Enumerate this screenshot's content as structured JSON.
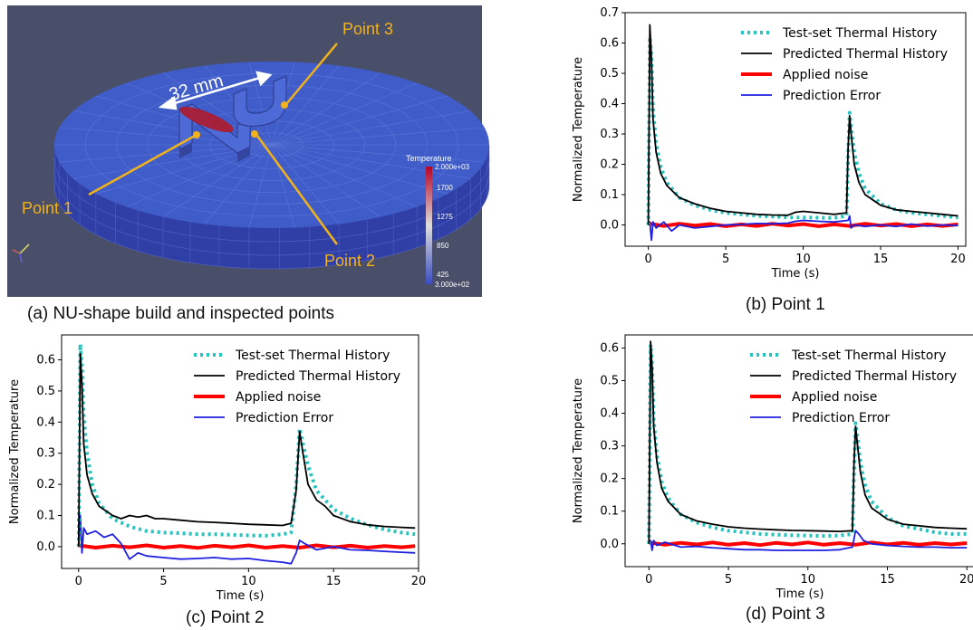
{
  "figure": {
    "panel_a": {
      "caption": "(a) NU-shape build and inspected points",
      "dimension_label": "32 mm",
      "point_labels": [
        "Point 1",
        "Point 2",
        "Point 3"
      ],
      "colorbar": {
        "title": "Temperature",
        "ticks": [
          "2.000e+03",
          "1700",
          "1275",
          "850",
          "425",
          "3.000e+02"
        ]
      },
      "colors": {
        "background": "#4a4f69",
        "part": "#3f5cc8",
        "hot": "#b01a2a",
        "callout": "#f2b21b"
      }
    },
    "captions": {
      "b": "(b) Point 1",
      "c": "(c) Point 2",
      "d": "(d) Point 3"
    }
  },
  "chart_data": [
    {
      "panel": "b",
      "type": "line",
      "xlabel": "Time (s)",
      "ylabel": "Normalized Temperature",
      "xlim": [
        -1.5,
        20.5
      ],
      "ylim": [
        -0.07,
        0.7
      ],
      "xticks": [
        0,
        5,
        10,
        15,
        20
      ],
      "yticks": [
        0.0,
        0.1,
        0.2,
        0.3,
        0.4,
        0.5,
        0.6,
        0.7
      ],
      "legend": "top-right",
      "series": [
        {
          "name": "Test-set Thermal History",
          "color": "#26c2bd",
          "style": "dotted",
          "x": [
            0,
            0.1,
            0.2,
            0.3,
            0.5,
            0.8,
            1.2,
            2,
            3,
            4,
            5,
            6,
            7,
            8,
            9,
            10,
            11,
            12,
            12.8,
            12.9,
            13.0,
            13.1,
            13.3,
            13.6,
            14,
            15,
            16,
            17,
            18,
            19,
            20
          ],
          "y": [
            0,
            0.62,
            0.55,
            0.38,
            0.27,
            0.19,
            0.14,
            0.09,
            0.065,
            0.05,
            0.04,
            0.035,
            0.03,
            0.028,
            0.025,
            0.025,
            0.024,
            0.023,
            0.03,
            0.22,
            0.37,
            0.32,
            0.24,
            0.17,
            0.12,
            0.07,
            0.05,
            0.04,
            0.035,
            0.03,
            0.025
          ]
        },
        {
          "name": "Predicted Thermal History",
          "color": "#000000",
          "style": "solid",
          "x": [
            0,
            0.1,
            0.2,
            0.3,
            0.5,
            0.8,
            1.2,
            2,
            3,
            4,
            5,
            6,
            7,
            8,
            9,
            9.5,
            10,
            11,
            12,
            12.8,
            12.9,
            13.0,
            13.1,
            13.3,
            13.6,
            14,
            15,
            16,
            17,
            18,
            19,
            20
          ],
          "y": [
            0,
            0.66,
            0.55,
            0.35,
            0.24,
            0.17,
            0.13,
            0.09,
            0.07,
            0.055,
            0.045,
            0.04,
            0.035,
            0.033,
            0.032,
            0.042,
            0.045,
            0.04,
            0.035,
            0.04,
            0.25,
            0.36,
            0.3,
            0.2,
            0.14,
            0.1,
            0.065,
            0.05,
            0.045,
            0.04,
            0.035,
            0.03
          ]
        },
        {
          "name": "Applied noise",
          "color": "#ff0000",
          "style": "thick",
          "x": [
            0,
            1,
            2,
            3,
            4,
            5,
            6,
            7,
            8,
            9,
            10,
            11,
            12,
            13,
            14,
            15,
            16,
            17,
            18,
            19,
            20
          ],
          "y": [
            0.005,
            -0.003,
            0.004,
            -0.002,
            0.003,
            -0.004,
            0.002,
            -0.003,
            0.004,
            -0.002,
            0.003,
            -0.004,
            0.002,
            -0.003,
            0.004,
            -0.002,
            0.003,
            -0.004,
            0.002,
            -0.003,
            0.002
          ]
        },
        {
          "name": "Prediction Error",
          "color": "#1f1fe0",
          "style": "solid",
          "x": [
            0,
            0.1,
            0.2,
            0.3,
            0.5,
            1,
            1.5,
            2,
            3,
            4,
            5,
            6,
            7,
            8,
            9,
            9.5,
            10,
            11,
            12,
            12.9,
            13.0,
            13.1,
            13.3,
            14,
            15,
            16,
            17,
            18,
            19,
            20
          ],
          "y": [
            0,
            0.01,
            -0.05,
            0.01,
            -0.01,
            0.01,
            -0.02,
            0.0,
            -0.01,
            -0.005,
            0.0,
            0.002,
            0.005,
            0.004,
            0.006,
            0.012,
            0.015,
            0.012,
            0.01,
            0.015,
            0.03,
            -0.01,
            0.0,
            -0.005,
            0.0,
            -0.005,
            0.003,
            -0.004,
            0.0,
            -0.002
          ]
        }
      ]
    },
    {
      "panel": "c",
      "type": "line",
      "xlabel": "Time (s)",
      "ylabel": "Normalized Temperature",
      "xlim": [
        -1.0,
        20.0
      ],
      "ylim": [
        -0.07,
        0.68
      ],
      "xticks": [
        0,
        5,
        10,
        15,
        20
      ],
      "yticks": [
        0.0,
        0.1,
        0.2,
        0.3,
        0.4,
        0.5,
        0.6
      ],
      "legend": "top-right",
      "series": [
        {
          "name": "Test-set Thermal History",
          "color": "#26c2bd",
          "style": "dotted",
          "x": [
            0,
            0.1,
            0.2,
            0.3,
            0.5,
            0.8,
            1.2,
            2,
            3,
            4,
            5,
            6,
            7,
            8,
            9,
            10,
            11,
            12,
            12.5,
            12.8,
            13.0,
            13.2,
            13.5,
            14,
            14.5,
            15,
            16,
            17,
            18,
            19,
            19.8
          ],
          "y": [
            0,
            0.65,
            0.58,
            0.42,
            0.3,
            0.2,
            0.14,
            0.09,
            0.065,
            0.05,
            0.045,
            0.043,
            0.04,
            0.04,
            0.038,
            0.036,
            0.035,
            0.04,
            0.045,
            0.2,
            0.38,
            0.33,
            0.26,
            0.18,
            0.15,
            0.12,
            0.09,
            0.07,
            0.055,
            0.045,
            0.04
          ]
        },
        {
          "name": "Predicted Thermal History",
          "color": "#000000",
          "style": "solid",
          "x": [
            0,
            0.1,
            0.2,
            0.3,
            0.5,
            0.8,
            1.2,
            2,
            2.5,
            3,
            3.5,
            4,
            4.5,
            5,
            6,
            7,
            8,
            9,
            10,
            11,
            12,
            12.5,
            12.8,
            13.0,
            13.2,
            13.5,
            14,
            14.5,
            15,
            16,
            17,
            18,
            19,
            19.8
          ],
          "y": [
            0,
            0.62,
            0.52,
            0.33,
            0.23,
            0.17,
            0.13,
            0.1,
            0.09,
            0.1,
            0.095,
            0.1,
            0.09,
            0.09,
            0.085,
            0.08,
            0.078,
            0.075,
            0.072,
            0.07,
            0.068,
            0.075,
            0.18,
            0.37,
            0.3,
            0.2,
            0.15,
            0.13,
            0.1,
            0.08,
            0.07,
            0.065,
            0.062,
            0.06
          ]
        },
        {
          "name": "Applied noise",
          "color": "#ff0000",
          "style": "thick",
          "x": [
            0,
            1,
            2,
            3,
            4,
            5,
            6,
            7,
            8,
            9,
            10,
            11,
            12,
            13,
            14,
            15,
            16,
            17,
            18,
            19,
            19.8
          ],
          "y": [
            0.004,
            -0.003,
            0.003,
            -0.002,
            0.004,
            -0.003,
            0.002,
            -0.004,
            0.003,
            -0.002,
            0.004,
            -0.003,
            0.002,
            -0.003,
            0.004,
            -0.002,
            0.003,
            -0.003,
            0.002,
            -0.002,
            0.002
          ]
        },
        {
          "name": "Prediction Error",
          "color": "#1f1fe0",
          "style": "solid",
          "x": [
            0,
            0.1,
            0.2,
            0.3,
            0.5,
            1,
            1.5,
            2,
            2.5,
            3,
            3.5,
            4,
            5,
            6,
            7,
            8,
            9,
            10,
            11,
            12,
            12.5,
            12.8,
            13.0,
            13.3,
            14,
            15,
            16,
            17,
            18,
            19,
            19.8
          ],
          "y": [
            0,
            0.1,
            -0.02,
            0.06,
            0.04,
            0.05,
            0.03,
            0.04,
            0.01,
            -0.04,
            -0.02,
            -0.03,
            -0.035,
            -0.04,
            -0.038,
            -0.035,
            -0.04,
            -0.038,
            -0.045,
            -0.05,
            -0.055,
            -0.02,
            0.02,
            0.01,
            -0.01,
            0.0,
            -0.01,
            -0.012,
            -0.015,
            -0.018,
            -0.02
          ]
        }
      ]
    },
    {
      "panel": "d",
      "type": "line",
      "xlabel": "Time (s)",
      "ylabel": "Normalized Temperature",
      "xlim": [
        -1.5,
        20.5
      ],
      "ylim": [
        -0.07,
        0.64
      ],
      "xticks": [
        0,
        5,
        10,
        15,
        20
      ],
      "yticks": [
        0.0,
        0.1,
        0.2,
        0.3,
        0.4,
        0.5,
        0.6
      ],
      "legend": "top-right",
      "series": [
        {
          "name": "Test-set Thermal History",
          "color": "#26c2bd",
          "style": "dotted",
          "x": [
            0,
            0.1,
            0.2,
            0.3,
            0.5,
            0.8,
            1.2,
            2,
            3,
            4,
            5,
            6,
            7,
            8,
            9,
            10,
            11,
            12,
            12.8,
            12.9,
            13.0,
            13.1,
            13.3,
            13.6,
            14,
            15,
            16,
            17,
            18,
            19,
            20
          ],
          "y": [
            0,
            0.61,
            0.55,
            0.38,
            0.27,
            0.19,
            0.14,
            0.09,
            0.065,
            0.05,
            0.04,
            0.035,
            0.03,
            0.028,
            0.026,
            0.025,
            0.024,
            0.025,
            0.03,
            0.22,
            0.37,
            0.33,
            0.25,
            0.18,
            0.13,
            0.08,
            0.055,
            0.045,
            0.035,
            0.03,
            0.03
          ]
        },
        {
          "name": "Predicted Thermal History",
          "color": "#000000",
          "style": "solid",
          "x": [
            0,
            0.1,
            0.2,
            0.3,
            0.5,
            0.8,
            1.2,
            2,
            3,
            4,
            5,
            6,
            7,
            8,
            9,
            10,
            11,
            12,
            12.8,
            12.9,
            13.0,
            13.1,
            13.3,
            13.6,
            14,
            15,
            16,
            17,
            18,
            19,
            20
          ],
          "y": [
            0,
            0.62,
            0.54,
            0.36,
            0.25,
            0.17,
            0.13,
            0.09,
            0.07,
            0.06,
            0.052,
            0.048,
            0.045,
            0.043,
            0.041,
            0.04,
            0.039,
            0.038,
            0.04,
            0.25,
            0.36,
            0.31,
            0.22,
            0.15,
            0.11,
            0.075,
            0.06,
            0.055,
            0.05,
            0.048,
            0.046
          ]
        },
        {
          "name": "Applied noise",
          "color": "#ff0000",
          "style": "thick",
          "x": [
            0,
            1,
            2,
            3,
            4,
            5,
            6,
            7,
            8,
            9,
            10,
            11,
            12,
            13,
            14,
            15,
            16,
            17,
            18,
            19,
            20
          ],
          "y": [
            0.004,
            -0.003,
            0.003,
            -0.002,
            0.004,
            -0.003,
            0.002,
            -0.004,
            0.003,
            -0.002,
            0.004,
            -0.003,
            0.002,
            -0.003,
            0.004,
            -0.002,
            0.003,
            -0.003,
            0.002,
            -0.002,
            0.002
          ]
        },
        {
          "name": "Prediction Error",
          "color": "#1f1fe0",
          "style": "solid",
          "x": [
            0,
            0.1,
            0.2,
            0.3,
            0.5,
            1,
            2,
            3,
            4,
            5,
            6,
            7,
            8,
            9,
            10,
            11,
            12,
            12.8,
            13.0,
            13.2,
            13.5,
            14,
            15,
            16,
            17,
            18,
            19,
            20
          ],
          "y": [
            0,
            0.01,
            -0.02,
            0.01,
            -0.005,
            0.005,
            -0.01,
            -0.008,
            -0.012,
            -0.015,
            -0.018,
            -0.018,
            -0.02,
            -0.02,
            -0.02,
            -0.02,
            -0.018,
            -0.01,
            0.04,
            0.03,
            0.01,
            0.0,
            -0.005,
            -0.008,
            -0.01,
            -0.01,
            -0.012,
            -0.012
          ]
        }
      ]
    }
  ]
}
